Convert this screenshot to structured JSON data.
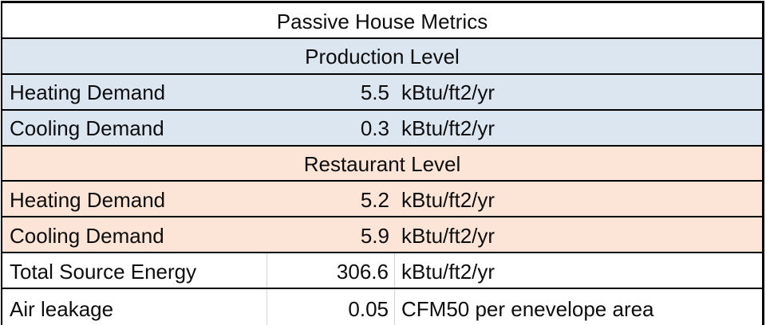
{
  "chart_data": {
    "type": "table",
    "title": "Passive House Metrics",
    "sections": [
      {
        "header": "Production Level",
        "fill_color": "#dce6f1",
        "rows": [
          {
            "label": "Heating Demand",
            "value": 5.5,
            "unit": "kBtu/ft2/yr"
          },
          {
            "label": "Cooling Demand",
            "value": 0.3,
            "unit": "kBtu/ft2/yr"
          }
        ]
      },
      {
        "header": "Restaurant Level",
        "fill_color": "#fce4d6",
        "rows": [
          {
            "label": "Heating Demand",
            "value": 5.2,
            "unit": "kBtu/ft2/yr"
          },
          {
            "label": "Cooling Demand",
            "value": 5.9,
            "unit": "kBtu/ft2/yr"
          }
        ]
      }
    ],
    "summary_rows": [
      {
        "label": "Total Source Energy",
        "value": 306.6,
        "unit": "kBtu/ft2/yr"
      },
      {
        "label": "Air leakage",
        "value": 0.05,
        "unit": "CFM50 per enevelope area"
      }
    ],
    "layout": {
      "columns": [
        "metric",
        "value",
        "unit"
      ],
      "title_row_merged": true,
      "section_header_rows_merged": true,
      "value_alignment": "right",
      "grid": "black horizontal borders between all rows; light gray vertical gridlines only in unfilled summary rows",
      "legend": "none"
    },
    "colors": {
      "production_fill": "#dce6f1",
      "restaurant_fill": "#fce4d6",
      "summary_fill": "#ffffff",
      "table_border": "#000000",
      "gridline": "#d2d2d2",
      "text": "#0d0d0d"
    }
  }
}
